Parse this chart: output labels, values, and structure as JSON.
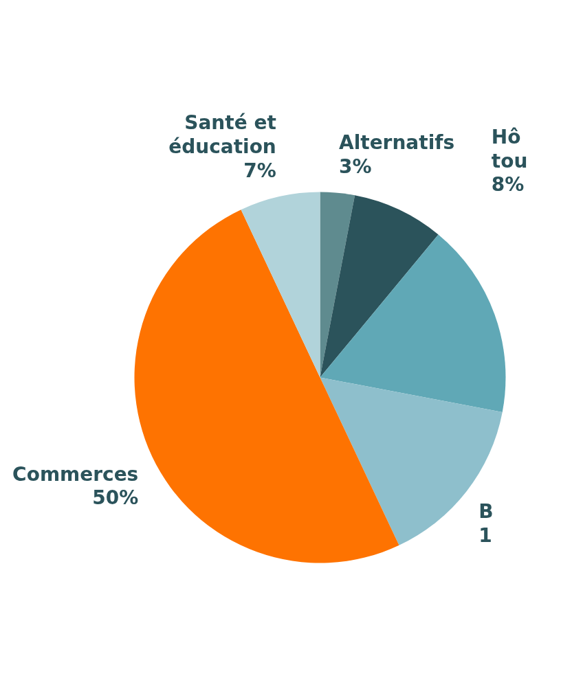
{
  "chart_data": {
    "type": "pie",
    "categories": [
      "Alternatifs",
      "Hô\ntou",
      null,
      "B\n1",
      "Commerces",
      "Santé et\néducation"
    ],
    "values": [
      3,
      8,
      17,
      15,
      50,
      7
    ],
    "colors": [
      "#5f8b8f",
      "#2b535b",
      "#60a8b6",
      "#8ebfcc",
      "#fe7301",
      "#b1d3da"
    ],
    "value_labels": [
      "3%",
      "8%",
      null,
      null,
      "50%",
      "7%"
    ]
  }
}
